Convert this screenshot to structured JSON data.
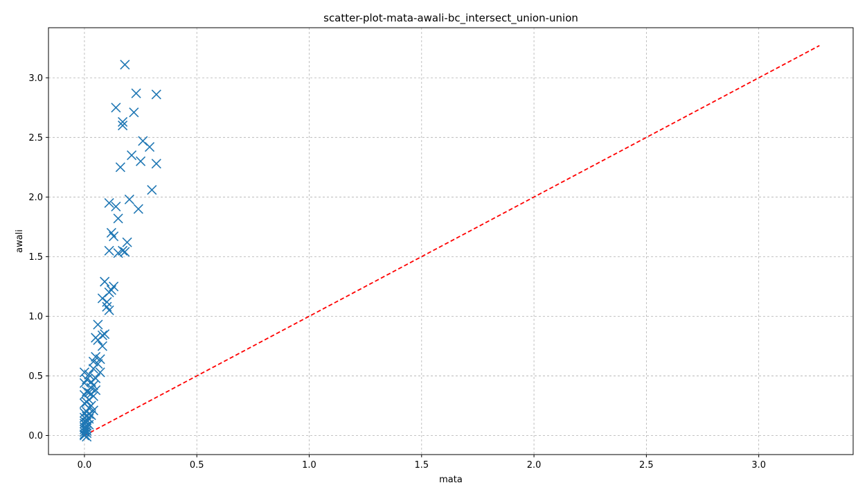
{
  "chart_data": {
    "type": "scatter",
    "title": "scatter-plot-mata-awali-bc_intersect_union-union",
    "xlabel": "mata",
    "ylabel": "awali",
    "xlim": [
      -0.16,
      3.42
    ],
    "ylim": [
      -0.16,
      3.42
    ],
    "xticks": [
      0.0,
      0.5,
      1.0,
      1.5,
      2.0,
      2.5,
      3.0
    ],
    "yticks": [
      0.0,
      0.5,
      1.0,
      1.5,
      2.0,
      2.5,
      3.0
    ],
    "xtick_labels": [
      "0.0",
      "0.5",
      "1.0",
      "1.5",
      "2.0",
      "2.5",
      "3.0"
    ],
    "ytick_labels": [
      "0.0",
      "0.5",
      "1.0",
      "1.5",
      "2.0",
      "2.5",
      "3.0"
    ],
    "grid": true,
    "marker": "x",
    "colors": {
      "points": "#1f77b4",
      "reference_line": "#ff0000",
      "grid": "#b0b0b0"
    },
    "reference_line": {
      "style": "dashed",
      "x": [
        0.0,
        3.27
      ],
      "y": [
        0.0,
        3.27
      ]
    },
    "series": [
      {
        "x": [
          0.18,
          0.23,
          0.32,
          0.14,
          0.22,
          0.17,
          0.17,
          0.26,
          0.29,
          0.21,
          0.25,
          0.32,
          0.16,
          0.3,
          0.2,
          0.11,
          0.14,
          0.24,
          0.15,
          0.12,
          0.13,
          0.19,
          0.11,
          0.17,
          0.18,
          0.15,
          0.09,
          0.13,
          0.12,
          0.11,
          0.08,
          0.1,
          0.1,
          0.11,
          0.06,
          0.08,
          0.05,
          0.09,
          0.06,
          0.08,
          0.05,
          0.07,
          0.04,
          0.06,
          0.04,
          0.07,
          0.0,
          0.02,
          0.05,
          0.01,
          0.03,
          0.0,
          0.04,
          0.03,
          0.05,
          0.01,
          0.02,
          0.03,
          0.0,
          0.04,
          0.02,
          0.01,
          0.03,
          0.0,
          0.02,
          0.04,
          0.01,
          0.02,
          0.0,
          0.03,
          0.01,
          0.0,
          0.02,
          0.01,
          0.0,
          0.01,
          0.0,
          0.02,
          0.01,
          0.0,
          0.01,
          0.0,
          0.01,
          0.0,
          0.01,
          0.0,
          0.0,
          0.01
        ],
        "y": [
          3.11,
          2.87,
          2.86,
          2.75,
          2.71,
          2.63,
          2.6,
          2.47,
          2.42,
          2.35,
          2.3,
          2.28,
          2.25,
          2.06,
          1.98,
          1.95,
          1.92,
          1.9,
          1.82,
          1.7,
          1.67,
          1.62,
          1.55,
          1.55,
          1.54,
          1.53,
          1.29,
          1.25,
          1.22,
          1.2,
          1.15,
          1.12,
          1.08,
          1.05,
          0.93,
          0.84,
          0.82,
          0.85,
          0.8,
          0.75,
          0.66,
          0.64,
          0.62,
          0.6,
          0.56,
          0.53,
          0.53,
          0.51,
          0.48,
          0.47,
          0.45,
          0.44,
          0.42,
          0.4,
          0.38,
          0.37,
          0.36,
          0.35,
          0.34,
          0.33,
          0.3,
          0.28,
          0.25,
          0.27,
          0.23,
          0.21,
          0.2,
          0.18,
          0.19,
          0.17,
          0.16,
          0.15,
          0.14,
          0.13,
          0.12,
          0.11,
          0.1,
          0.09,
          0.08,
          0.07,
          0.06,
          0.05,
          0.04,
          0.03,
          0.02,
          0.01,
          0.0,
          -0.01
        ]
      }
    ]
  }
}
